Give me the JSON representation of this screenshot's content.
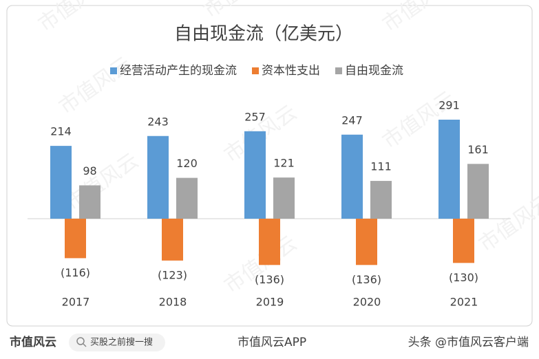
{
  "chart_data": {
    "type": "bar",
    "title": "自由现金流（亿美元）",
    "categories": [
      "2017",
      "2018",
      "2019",
      "2020",
      "2021"
    ],
    "series": [
      {
        "name": "经营活动产生的现金流",
        "color": "#5b9bd5",
        "values": [
          214,
          243,
          257,
          247,
          291
        ]
      },
      {
        "name": "资本性支出",
        "color": "#ed7d31",
        "values": [
          -116,
          -123,
          -136,
          -136,
          -130
        ],
        "value_labels": [
          "(116)",
          "(123)",
          "(136)",
          "(136)",
          "(130)"
        ]
      },
      {
        "name": "自由现金流",
        "color": "#a5a5a5",
        "values": [
          98,
          120,
          121,
          111,
          161
        ]
      }
    ],
    "legend": "top"
  },
  "watermark": "市值风云",
  "footer": {
    "logo": "市值风云",
    "search": "买股之前搜一搜",
    "app": "市值风云APP",
    "source": "头条 @市值风云客户端"
  }
}
